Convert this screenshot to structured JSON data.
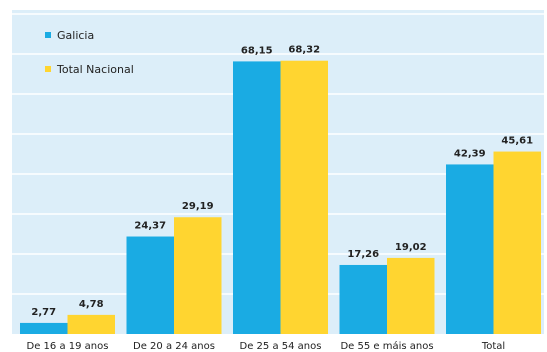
{
  "chart_data": {
    "type": "bar",
    "categories": [
      "De 16 a 19 anos",
      "De 20 a 24 anos",
      "De 25 a 54 anos",
      "De 55 e máis anos",
      "Total"
    ],
    "series": [
      {
        "name": "Galicia",
        "values": [
          2.77,
          24.37,
          68.15,
          17.26,
          42.39
        ],
        "labels": [
          "2,77",
          "24,37",
          "68,15",
          "17,26",
          "42,39"
        ],
        "color": "#1AABE3"
      },
      {
        "name": "Total Nacional",
        "values": [
          4.78,
          29.19,
          68.32,
          19.02,
          45.61
        ],
        "labels": [
          "4,78",
          "29,19",
          "68,32",
          "19,02",
          "45,61"
        ],
        "color": "#FFD530"
      }
    ],
    "ylim": [
      0,
      80
    ],
    "grid": true,
    "legend_position": "top-left",
    "background": "#DCEEF9",
    "gridline_color": "#FFFFFF"
  }
}
